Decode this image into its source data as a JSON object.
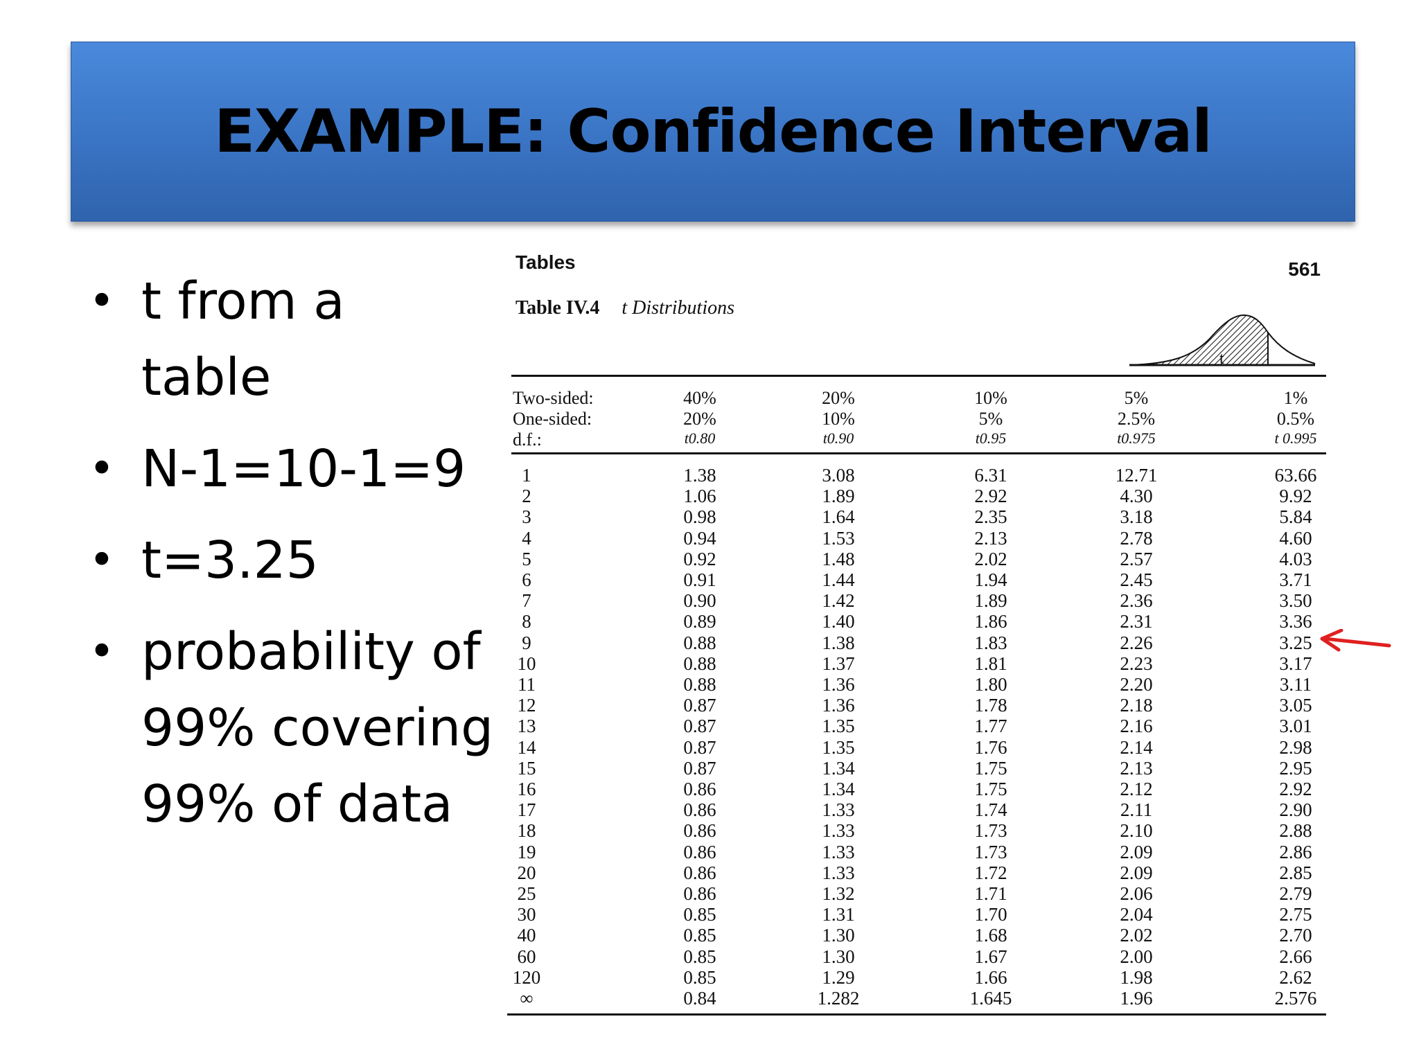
{
  "title": "EXAMPLE: Confidence Interval",
  "bullets": [
    {
      "lines": [
        "t from a",
        "table"
      ]
    },
    {
      "lines": [
        "N-1=10-1=9"
      ]
    },
    {
      "lines": [
        "t=3.25"
      ]
    },
    {
      "lines": [
        "probability of",
        "99% covering",
        "99% of data"
      ]
    }
  ],
  "scan": {
    "section": "Tables",
    "page_number": "561",
    "table_label": "Table IV.4",
    "table_name": "t Distributions",
    "curve_label": "t",
    "header_labels": [
      "Two-sided:",
      "One-sided:",
      "d.f.:"
    ],
    "columns": [
      {
        "two_sided": "40%",
        "one_sided": "20%",
        "t": "t0.80"
      },
      {
        "two_sided": "20%",
        "one_sided": "10%",
        "t": "t0.90"
      },
      {
        "two_sided": "10%",
        "one_sided": "5%",
        "t": "t0.95"
      },
      {
        "two_sided": "5%",
        "one_sided": "2.5%",
        "t": "t0.975"
      },
      {
        "two_sided": "1%",
        "one_sided": "0.5%",
        "t": "t 0.995"
      }
    ],
    "rows": [
      [
        "1",
        "1.38",
        "3.08",
        "6.31",
        "12.71",
        "63.66"
      ],
      [
        "2",
        "1.06",
        "1.89",
        "2.92",
        "4.30",
        "9.92"
      ],
      [
        "3",
        "0.98",
        "1.64",
        "2.35",
        "3.18",
        "5.84"
      ],
      [
        "4",
        "0.94",
        "1.53",
        "2.13",
        "2.78",
        "4.60"
      ],
      [
        "5",
        "0.92",
        "1.48",
        "2.02",
        "2.57",
        "4.03"
      ],
      [
        "6",
        "0.91",
        "1.44",
        "1.94",
        "2.45",
        "3.71"
      ],
      [
        "7",
        "0.90",
        "1.42",
        "1.89",
        "2.36",
        "3.50"
      ],
      [
        "8",
        "0.89",
        "1.40",
        "1.86",
        "2.31",
        "3.36"
      ],
      [
        "9",
        "0.88",
        "1.38",
        "1.83",
        "2.26",
        "3.25"
      ],
      [
        "10",
        "0.88",
        "1.37",
        "1.81",
        "2.23",
        "3.17"
      ],
      [
        "11",
        "0.88",
        "1.36",
        "1.80",
        "2.20",
        "3.11"
      ],
      [
        "12",
        "0.87",
        "1.36",
        "1.78",
        "2.18",
        "3.05"
      ],
      [
        "13",
        "0.87",
        "1.35",
        "1.77",
        "2.16",
        "3.01"
      ],
      [
        "14",
        "0.87",
        "1.35",
        "1.76",
        "2.14",
        "2.98"
      ],
      [
        "15",
        "0.87",
        "1.34",
        "1.75",
        "2.13",
        "2.95"
      ],
      [
        "16",
        "0.86",
        "1.34",
        "1.75",
        "2.12",
        "2.92"
      ],
      [
        "17",
        "0.86",
        "1.33",
        "1.74",
        "2.11",
        "2.90"
      ],
      [
        "18",
        "0.86",
        "1.33",
        "1.73",
        "2.10",
        "2.88"
      ],
      [
        "19",
        "0.86",
        "1.33",
        "1.73",
        "2.09",
        "2.86"
      ],
      [
        "20",
        "0.86",
        "1.33",
        "1.72",
        "2.09",
        "2.85"
      ],
      [
        "25",
        "0.86",
        "1.32",
        "1.71",
        "2.06",
        "2.79"
      ],
      [
        "30",
        "0.85",
        "1.31",
        "1.70",
        "2.04",
        "2.75"
      ],
      [
        "40",
        "0.85",
        "1.30",
        "1.68",
        "2.02",
        "2.70"
      ],
      [
        "60",
        "0.85",
        "1.30",
        "1.67",
        "2.00",
        "2.66"
      ],
      [
        "120",
        "0.85",
        "1.29",
        "1.66",
        "1.98",
        "2.62"
      ],
      [
        "∞",
        "0.84",
        "1.282",
        "1.645",
        "1.96",
        "2.576"
      ]
    ],
    "highlight_arrow_color": "#e02020"
  }
}
